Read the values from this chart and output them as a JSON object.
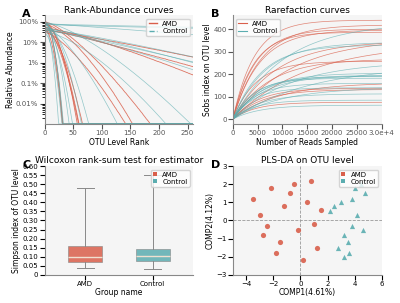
{
  "title_A": "Rank-Abundance curves",
  "title_B": "Rarefaction curves",
  "title_C": "Wilcoxon rank-sum test for estimator",
  "title_D": "PLS-DA on OTU level",
  "amd_color": "#d95f4b",
  "control_color": "#5badb0",
  "panel_label_fontsize": 8,
  "title_fontsize": 6.5,
  "tick_fontsize": 5,
  "axis_label_fontsize": 5.5,
  "legend_fontsize": 5,
  "amd_label": "AMD",
  "control_label": "Control",
  "rankabund_xlabel": "OTU Level Rank",
  "rankabund_ylabel": "Relative Abundance",
  "rarefaction_xlabel": "Number of Reads Sampled",
  "rarefaction_ylabel": "Sobs index on OTU level",
  "wilcox_xlabel": "Group name",
  "wilcox_ylabel": "Simpson index of OTU level",
  "plsda_xlabel": "COMP1(4.61%)",
  "plsda_ylabel": "COMP2(4.12%)",
  "amd_box": {
    "q1": 0.07,
    "median": 0.1,
    "q3": 0.16,
    "whislo": 0.035,
    "whishi": 0.48
  },
  "ctrl_box": {
    "q1": 0.075,
    "median": 0.105,
    "q3": 0.145,
    "whislo": 0.03,
    "whishi": 0.55
  },
  "amd_scatter_x": [
    -3.5,
    -2.8,
    -2.2,
    -1.5,
    -0.8,
    -0.2,
    0.5,
    1.0,
    1.5,
    -3.0,
    -1.8,
    0.8,
    0.2,
    -1.2,
    1.2,
    -2.5,
    -0.5
  ],
  "amd_scatter_y": [
    1.2,
    -0.8,
    1.8,
    -1.2,
    1.5,
    -0.5,
    1.0,
    -0.2,
    0.6,
    0.3,
    -1.8,
    2.2,
    -2.2,
    0.8,
    -1.5,
    -0.3,
    2.0
  ],
  "ctrl_scatter_x": [
    2.5,
    3.2,
    3.8,
    2.8,
    4.2,
    3.5,
    4.0,
    4.6,
    3.0,
    3.8,
    4.8,
    3.2,
    2.2,
    4.5,
    3.6
  ],
  "ctrl_scatter_y": [
    0.8,
    -0.8,
    1.2,
    -1.5,
    0.3,
    -1.2,
    1.8,
    -0.5,
    1.0,
    -0.3,
    1.5,
    -2.0,
    0.5,
    2.0,
    -1.8
  ],
  "plsda_xlim": [
    -5,
    6
  ],
  "plsda_ylim": [
    -3.0,
    3.0
  ],
  "bg_color": "#f5f5f5"
}
